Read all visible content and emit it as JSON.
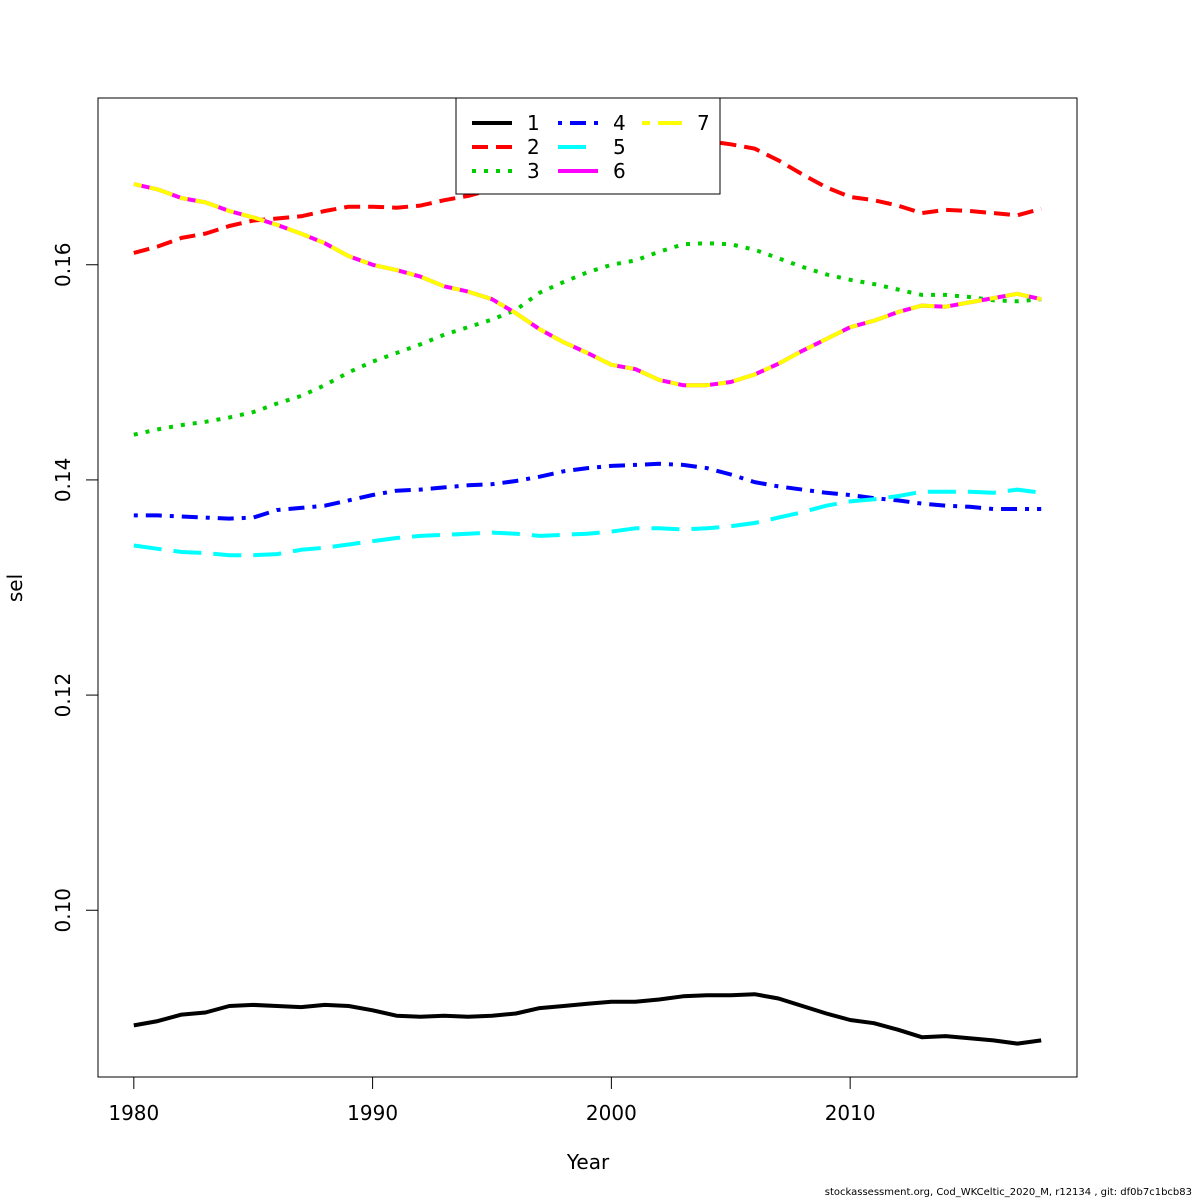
{
  "chart_data": {
    "type": "line",
    "xlabel": "Year",
    "ylabel": "sel",
    "xlim": [
      1978.5,
      2019.5
    ],
    "ylim": [
      0.0845,
      0.1755
    ],
    "x_ticks": [
      1980,
      1990,
      2000,
      2010
    ],
    "x_tick_labels": [
      "1980",
      "1990",
      "2000",
      "2010"
    ],
    "y_ticks": [
      0.1,
      0.12,
      0.14,
      0.16
    ],
    "y_tick_labels": [
      "0.10",
      "0.12",
      "0.14",
      "0.16"
    ],
    "grid": false,
    "legend_position": "top-center",
    "x": [
      1980,
      1981,
      1982,
      1983,
      1984,
      1985,
      1986,
      1987,
      1988,
      1989,
      1990,
      1991,
      1992,
      1993,
      1994,
      1995,
      1996,
      1997,
      1998,
      1999,
      2000,
      2001,
      2002,
      2003,
      2004,
      2005,
      2006,
      2007,
      2008,
      2009,
      2010,
      2011,
      2012,
      2013,
      2014,
      2015,
      2016,
      2017,
      2018
    ],
    "series": [
      {
        "name": "1",
        "color": "#000000",
        "dash": "solid",
        "values": [
          0.0893,
          0.0897,
          0.0903,
          0.0905,
          0.0911,
          0.0912,
          0.0911,
          0.091,
          0.0912,
          0.0911,
          0.0907,
          0.0902,
          0.0901,
          0.0902,
          0.0901,
          0.0902,
          0.0904,
          0.0909,
          0.0911,
          0.0913,
          0.0915,
          0.0915,
          0.0917,
          0.092,
          0.0921,
          0.0921,
          0.0922,
          0.0918,
          0.0911,
          0.0904,
          0.0898,
          0.0895,
          0.0889,
          0.0882,
          0.0883,
          0.0881,
          0.0879,
          0.0876,
          0.0879
        ]
      },
      {
        "name": "2",
        "color": "#ff0000",
        "dash": "dashed",
        "values": [
          0.1611,
          0.1617,
          0.1625,
          0.1629,
          0.1636,
          0.1641,
          0.1643,
          0.1645,
          0.165,
          0.1654,
          0.1654,
          0.1653,
          0.1655,
          0.166,
          0.1664,
          0.167,
          0.1674,
          0.1679,
          0.1684,
          0.169,
          0.1695,
          0.17,
          0.1706,
          0.1712,
          0.1715,
          0.1712,
          0.1708,
          0.1697,
          0.1684,
          0.1672,
          0.1663,
          0.166,
          0.1655,
          0.1648,
          0.1651,
          0.165,
          0.1648,
          0.1646,
          0.1652
        ]
      },
      {
        "name": "3",
        "color": "#00cd00",
        "dash": "dotted",
        "values": [
          0.1442,
          0.1447,
          0.1451,
          0.1454,
          0.1458,
          0.1463,
          0.1471,
          0.1478,
          0.1488,
          0.15,
          0.151,
          0.1518,
          0.1526,
          0.1535,
          0.1542,
          0.1549,
          0.1558,
          0.1574,
          0.1584,
          0.1593,
          0.16,
          0.1604,
          0.1612,
          0.1619,
          0.162,
          0.1619,
          0.1614,
          0.1606,
          0.1598,
          0.1591,
          0.1586,
          0.1582,
          0.1577,
          0.1572,
          0.1572,
          0.157,
          0.1567,
          0.1566,
          0.1568
        ]
      },
      {
        "name": "4",
        "color": "#0000ff",
        "dash": "dotdash",
        "values": [
          0.1367,
          0.1367,
          0.1366,
          0.1365,
          0.1364,
          0.1365,
          0.1372,
          0.1374,
          0.1376,
          0.1381,
          0.1386,
          0.139,
          0.1391,
          0.1393,
          0.1395,
          0.1396,
          0.1399,
          0.1403,
          0.1408,
          0.1411,
          0.1413,
          0.1414,
          0.1415,
          0.1414,
          0.1411,
          0.1405,
          0.1398,
          0.1394,
          0.1391,
          0.1388,
          0.1386,
          0.1383,
          0.1381,
          0.1378,
          0.1376,
          0.1375,
          0.1373,
          0.1373,
          0.1373
        ]
      },
      {
        "name": "5",
        "color": "#00ffff",
        "dash": "longdash",
        "values": [
          0.1339,
          0.1336,
          0.1333,
          0.1332,
          0.133,
          0.133,
          0.1331,
          0.1335,
          0.1337,
          0.134,
          0.1343,
          0.1346,
          0.1348,
          0.1349,
          0.135,
          0.1351,
          0.135,
          0.1348,
          0.1349,
          0.135,
          0.1352,
          0.1355,
          0.1355,
          0.1354,
          0.1355,
          0.1357,
          0.136,
          0.1365,
          0.137,
          0.1376,
          0.138,
          0.1382,
          0.1385,
          0.1389,
          0.1389,
          0.1389,
          0.1388,
          0.1391,
          0.1388
        ]
      },
      {
        "name": "6",
        "color": "#ff00ff",
        "dash": "solid",
        "values": [
          0.1675,
          0.167,
          0.1662,
          0.1658,
          0.165,
          0.1644,
          0.1637,
          0.1629,
          0.162,
          0.1608,
          0.16,
          0.1595,
          0.1589,
          0.158,
          0.1575,
          0.1568,
          0.1555,
          0.154,
          0.1528,
          0.1518,
          0.1507,
          0.1503,
          0.1493,
          0.1488,
          0.1488,
          0.1491,
          0.1498,
          0.1508,
          0.152,
          0.1531,
          0.1542,
          0.1548,
          0.1556,
          0.1562,
          0.1561,
          0.1565,
          0.1569,
          0.1573,
          0.1568
        ]
      },
      {
        "name": "7",
        "color": "#ffff00",
        "dash": "twodash",
        "values": [
          0.1675,
          0.167,
          0.1662,
          0.1658,
          0.165,
          0.1644,
          0.1637,
          0.1629,
          0.162,
          0.1608,
          0.16,
          0.1595,
          0.1589,
          0.158,
          0.1575,
          0.1568,
          0.1555,
          0.154,
          0.1528,
          0.1518,
          0.1507,
          0.1503,
          0.1493,
          0.1488,
          0.1488,
          0.1491,
          0.1498,
          0.1508,
          0.152,
          0.1531,
          0.1542,
          0.1548,
          0.1556,
          0.1562,
          0.1561,
          0.1565,
          0.1569,
          0.1573,
          0.1568
        ]
      }
    ]
  },
  "footer": "stockassessment.org, Cod_WKCeltic_2020_M, r12134 , git: df0b7c1bcb83"
}
